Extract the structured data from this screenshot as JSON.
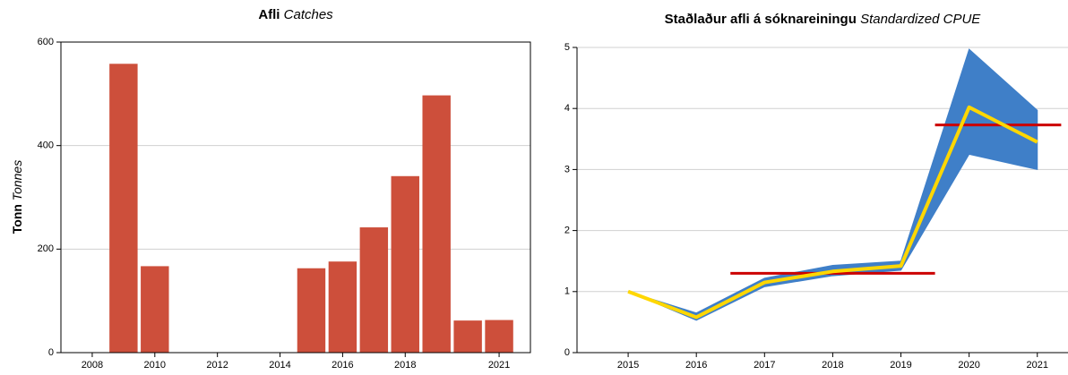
{
  "chart_data": [
    {
      "type": "bar",
      "title": [
        "Afli",
        "Catches"
      ],
      "ylabel": [
        "Tonn",
        "Tonnes"
      ],
      "x": [
        2009,
        2010,
        2015,
        2016,
        2017,
        2018,
        2019,
        2020,
        2021
      ],
      "values": [
        558,
        167,
        163,
        176,
        242,
        341,
        497,
        62,
        63
      ],
      "color": "#cd4f3b",
      "xlim": [
        2007,
        2022
      ],
      "xticks": [
        2008,
        2010,
        2012,
        2014,
        2016,
        2018,
        2021
      ],
      "ylim": [
        0,
        600
      ],
      "yticks": [
        0,
        200,
        400,
        600
      ],
      "grid": true
    },
    {
      "type": "line",
      "title": [
        "Staðlaður afli á sóknareiningu",
        "Standardized CPUE"
      ],
      "x": [
        2015,
        2016,
        2017,
        2018,
        2019,
        2020,
        2021
      ],
      "values": [
        1.0,
        0.58,
        1.15,
        1.33,
        1.42,
        4.02,
        3.45
      ],
      "lower": [
        1.0,
        0.53,
        1.08,
        1.26,
        1.35,
        3.25,
        3.0
      ],
      "upper": [
        1.0,
        0.65,
        1.22,
        1.43,
        1.5,
        4.97,
        3.97
      ],
      "color": "#ffd700",
      "band_color": "#3f7fc8",
      "segments": [
        {
          "x": [
            2016.5,
            2019.5
          ],
          "value": 1.3
        },
        {
          "x": [
            2019.5,
            2021.35
          ],
          "value": 3.73
        }
      ],
      "segment_color": "#cc0000",
      "xlim": [
        2014.25,
        2021.45
      ],
      "xticks": [
        2015,
        2016,
        2017,
        2018,
        2019,
        2020,
        2021
      ],
      "ylim": [
        0,
        5
      ],
      "yticks": [
        0,
        1,
        2,
        3,
        4,
        5
      ],
      "grid": true
    }
  ]
}
